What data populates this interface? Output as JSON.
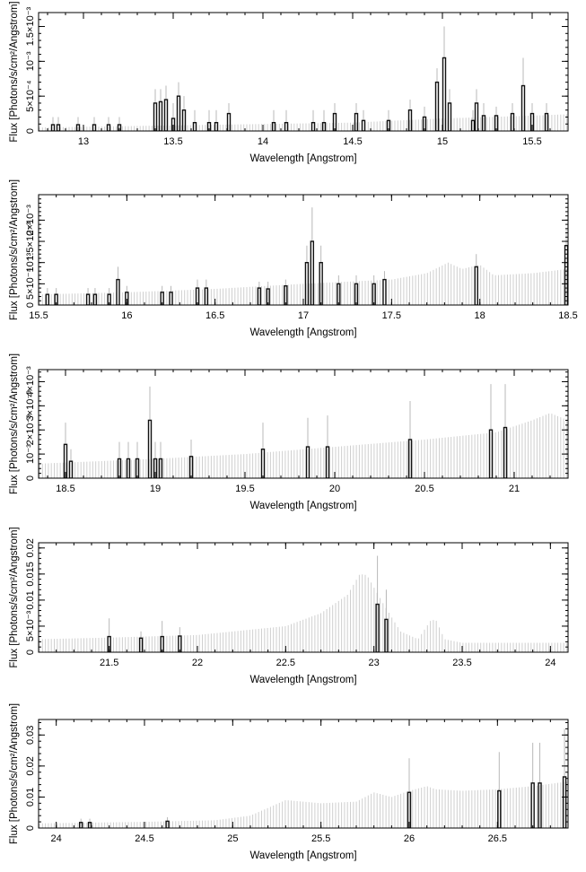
{
  "chart_data": [
    {
      "type": "bar",
      "xlabel": "Wavelength [Angstrom]",
      "ylabel": "Flux [Photons/s/cm²/Angstrom]",
      "xlim": [
        12.75,
        15.7
      ],
      "ylim": [
        0,
        0.0017
      ],
      "xticks": [
        13,
        13.5,
        14,
        14.5,
        15,
        15.5
      ],
      "xtick_labels": [
        "13",
        "13.5",
        "14",
        "14.5",
        "15",
        "15.5"
      ],
      "yticks": [
        0,
        0.0005,
        0.001,
        0.0015
      ],
      "ytick_labels": [
        "0",
        "5×10⁻⁴",
        "10⁻³",
        "1.5×10⁻³"
      ],
      "background": [
        [
          12.75,
          5e-05
        ],
        [
          13.0,
          6e-05
        ],
        [
          13.5,
          8e-05
        ],
        [
          14.0,
          0.0001
        ],
        [
          14.5,
          0.00012
        ],
        [
          15.0,
          0.00018
        ],
        [
          15.5,
          0.00022
        ],
        [
          15.7,
          0.00024
        ]
      ],
      "bins": [
        [
          12.83,
          9e-05,
          0.0002
        ],
        [
          12.86,
          9e-05,
          0.0002
        ],
        [
          12.97,
          9e-05,
          0.0002
        ],
        [
          13.06,
          9e-05,
          0.0002
        ],
        [
          13.14,
          9e-05,
          0.0002
        ],
        [
          13.2,
          9e-05,
          0.0002
        ],
        [
          13.4,
          0.0004,
          0.0006
        ],
        [
          13.43,
          0.00042,
          0.0006
        ],
        [
          13.46,
          0.00045,
          0.00065
        ],
        [
          13.5,
          0.00018,
          0.0004
        ],
        [
          13.53,
          0.0005,
          0.0007
        ],
        [
          13.56,
          0.0003,
          0.0005
        ],
        [
          13.62,
          0.00012,
          0.0003
        ],
        [
          13.7,
          0.00012,
          0.0003
        ],
        [
          13.74,
          0.00012,
          0.0003
        ],
        [
          13.81,
          0.00025,
          0.0004
        ],
        [
          14.06,
          0.00012,
          0.0003
        ],
        [
          14.13,
          0.00012,
          0.0003
        ],
        [
          14.28,
          0.00012,
          0.0003
        ],
        [
          14.34,
          0.00012,
          0.0003
        ],
        [
          14.4,
          0.00025,
          0.0004
        ],
        [
          14.52,
          0.00025,
          0.0004
        ],
        [
          14.56,
          0.00015,
          0.0003
        ],
        [
          14.7,
          0.00015,
          0.0003
        ],
        [
          14.82,
          0.0003,
          0.00045
        ],
        [
          14.9,
          0.0002,
          0.00035
        ],
        [
          14.97,
          0.0007,
          0.0009
        ],
        [
          15.01,
          0.00105,
          0.0015
        ],
        [
          15.04,
          0.0004,
          0.0006
        ],
        [
          15.17,
          0.00015,
          0.0003
        ],
        [
          15.19,
          0.0004,
          0.0006
        ],
        [
          15.23,
          0.00022,
          0.0004
        ],
        [
          15.3,
          0.00022,
          0.00035
        ],
        [
          15.39,
          0.00025,
          0.0004
        ],
        [
          15.45,
          0.00065,
          0.00105
        ],
        [
          15.5,
          0.00025,
          0.0004
        ],
        [
          15.58,
          0.00025,
          0.0004
        ]
      ]
    },
    {
      "type": "bar",
      "xlabel": "Wavelength [Angstrom]",
      "ylabel": "Flux [Photons/s/cm²/Angstrom]",
      "xlim": [
        15.5,
        18.5
      ],
      "ylim": [
        0,
        0.0026
      ],
      "xticks": [
        15.5,
        16,
        16.5,
        17,
        17.5,
        18,
        18.5
      ],
      "xtick_labels": [
        "15.5",
        "16",
        "16.5",
        "17",
        "17.5",
        "18",
        "18.5"
      ],
      "yticks": [
        0,
        0.0005,
        0.001,
        0.0015,
        0.002
      ],
      "ytick_labels": [
        "0",
        "5×10⁻⁴",
        "10⁻³",
        "1.5×10⁻³",
        "2×10⁻³"
      ],
      "background": [
        [
          15.5,
          0.00025
        ],
        [
          16.0,
          0.0003
        ],
        [
          16.5,
          0.00038
        ],
        [
          17.0,
          0.0005
        ],
        [
          17.5,
          0.0006
        ],
        [
          17.7,
          0.00075
        ],
        [
          17.82,
          0.001
        ],
        [
          17.9,
          0.00085
        ],
        [
          18.0,
          0.00095
        ],
        [
          18.08,
          0.0007
        ],
        [
          18.3,
          0.00075
        ],
        [
          18.5,
          0.00085
        ]
      ],
      "bins": [
        [
          15.55,
          0.00025,
          0.0004
        ],
        [
          15.6,
          0.00025,
          0.0004
        ],
        [
          15.78,
          0.00025,
          0.0004
        ],
        [
          15.82,
          0.00025,
          0.0004
        ],
        [
          15.9,
          0.00025,
          0.0004
        ],
        [
          15.95,
          0.0006,
          0.0009
        ],
        [
          16.0,
          0.0003,
          0.00045
        ],
        [
          16.2,
          0.0003,
          0.00045
        ],
        [
          16.25,
          0.0003,
          0.00045
        ],
        [
          16.4,
          0.0004,
          0.0006
        ],
        [
          16.45,
          0.0004,
          0.0006
        ],
        [
          16.75,
          0.0004,
          0.00055
        ],
        [
          16.8,
          0.00038,
          0.00055
        ],
        [
          16.9,
          0.00045,
          0.0006
        ],
        [
          17.02,
          0.001,
          0.0014
        ],
        [
          17.05,
          0.0015,
          0.0023
        ],
        [
          17.1,
          0.001,
          0.0014
        ],
        [
          17.2,
          0.0005,
          0.0007
        ],
        [
          17.3,
          0.0005,
          0.0007
        ],
        [
          17.4,
          0.0005,
          0.0007
        ],
        [
          17.46,
          0.0006,
          0.0008
        ],
        [
          17.98,
          0.0009,
          0.0012
        ],
        [
          18.49,
          0.0014,
          0.0018
        ]
      ]
    },
    {
      "type": "bar",
      "xlabel": "Wavelength [Angstrom]",
      "ylabel": "Flux [Photons/s/cm²/Angstrom]",
      "xlim": [
        18.35,
        21.3
      ],
      "ylim": [
        0,
        0.0045
      ],
      "xticks": [
        18.5,
        19,
        19.5,
        20,
        20.5,
        21
      ],
      "xtick_labels": [
        "18.5",
        "19",
        "19.5",
        "20",
        "20.5",
        "21"
      ],
      "yticks": [
        0,
        0.001,
        0.002,
        0.003,
        0.004
      ],
      "ytick_labels": [
        "0",
        "10⁻³",
        "2×10⁻³",
        "3×10⁻³",
        "4×10⁻³"
      ],
      "background": [
        [
          18.35,
          0.0006
        ],
        [
          19.0,
          0.0008
        ],
        [
          19.5,
          0.001
        ],
        [
          20.0,
          0.0013
        ],
        [
          20.5,
          0.0016
        ],
        [
          20.9,
          0.0019
        ],
        [
          21.1,
          0.0024
        ],
        [
          21.2,
          0.0027
        ],
        [
          21.3,
          0.0024
        ]
      ],
      "bins": [
        [
          18.5,
          0.0014,
          0.0023
        ],
        [
          18.53,
          0.0007,
          0.0012
        ],
        [
          18.8,
          0.0008,
          0.0015
        ],
        [
          18.85,
          0.0008,
          0.0015
        ],
        [
          18.9,
          0.0008,
          0.0015
        ],
        [
          18.97,
          0.0024,
          0.0038
        ],
        [
          19.0,
          0.0008,
          0.0015
        ],
        [
          19.03,
          0.0008,
          0.0015
        ],
        [
          19.2,
          0.0009,
          0.0016
        ],
        [
          19.6,
          0.0012,
          0.0023
        ],
        [
          19.85,
          0.0013,
          0.0025
        ],
        [
          19.96,
          0.0013,
          0.0026
        ],
        [
          20.42,
          0.0016,
          0.0032
        ],
        [
          20.87,
          0.002,
          0.0039
        ],
        [
          20.95,
          0.0021,
          0.0039
        ]
      ]
    },
    {
      "type": "bar",
      "xlabel": "Wavelength [Angstrom]",
      "ylabel": "Flux [Photons/s/cm²/Angstrom]",
      "xlim": [
        21.1,
        24.1
      ],
      "ylim": [
        0,
        0.021
      ],
      "xticks": [
        21.5,
        22,
        22.5,
        23,
        23.5,
        24
      ],
      "xtick_labels": [
        "21.5",
        "22",
        "22.5",
        "23",
        "23.5",
        "24"
      ],
      "yticks": [
        0,
        0.005,
        0.01,
        0.015,
        0.02
      ],
      "ytick_labels": [
        "0",
        "5×10⁻³",
        "0.01",
        "0.015",
        "0.02"
      ],
      "background": [
        [
          21.1,
          0.0025
        ],
        [
          21.5,
          0.0028
        ],
        [
          22.0,
          0.0033
        ],
        [
          22.5,
          0.005
        ],
        [
          22.7,
          0.0075
        ],
        [
          22.85,
          0.011
        ],
        [
          22.92,
          0.015
        ],
        [
          22.96,
          0.0148
        ],
        [
          23.05,
          0.0095
        ],
        [
          23.15,
          0.004
        ],
        [
          23.25,
          0.0025
        ],
        [
          23.32,
          0.006
        ],
        [
          23.35,
          0.0063
        ],
        [
          23.4,
          0.0025
        ],
        [
          23.5,
          0.0018
        ],
        [
          24.1,
          0.0018
        ]
      ],
      "bins": [
        [
          21.5,
          0.003,
          0.0065
        ],
        [
          21.68,
          0.0027,
          0.004
        ],
        [
          21.8,
          0.003,
          0.006
        ],
        [
          21.9,
          0.0031,
          0.0048
        ],
        [
          23.02,
          0.0092,
          0.0185
        ],
        [
          23.07,
          0.0063,
          0.012
        ]
      ]
    },
    {
      "type": "bar",
      "xlabel": "Wavelength [Angstrom]",
      "ylabel": "Flux [Photons/s/cm²/Angstrom]",
      "xlim": [
        23.9,
        26.9
      ],
      "ylim": [
        0,
        0.035
      ],
      "xticks": [
        24,
        24.5,
        25,
        25.5,
        26,
        26.5
      ],
      "xtick_labels": [
        "24",
        "24.5",
        "25",
        "25.5",
        "26",
        "26.5"
      ],
      "yticks": [
        0,
        0.01,
        0.02,
        0.03
      ],
      "ytick_labels": [
        "0",
        "0.01",
        "0.02",
        "0.03"
      ],
      "background": [
        [
          23.9,
          0.0015
        ],
        [
          24.5,
          0.002
        ],
        [
          24.9,
          0.0025
        ],
        [
          25.1,
          0.004
        ],
        [
          25.3,
          0.009
        ],
        [
          25.5,
          0.008
        ],
        [
          25.7,
          0.0085
        ],
        [
          25.8,
          0.0115
        ],
        [
          25.9,
          0.01
        ],
        [
          26.0,
          0.012
        ],
        [
          26.1,
          0.0135
        ],
        [
          26.15,
          0.0125
        ],
        [
          26.3,
          0.012
        ],
        [
          26.5,
          0.0125
        ],
        [
          26.7,
          0.0135
        ],
        [
          26.9,
          0.015
        ]
      ],
      "bins": [
        [
          24.14,
          0.0018,
          0.003
        ],
        [
          24.19,
          0.0018,
          0.003
        ],
        [
          24.63,
          0.0022,
          0.0035
        ],
        [
          26.0,
          0.0115,
          0.0225
        ],
        [
          26.51,
          0.012,
          0.0245
        ],
        [
          26.7,
          0.0145,
          0.0275
        ],
        [
          26.74,
          0.0145,
          0.0275
        ],
        [
          26.88,
          0.0165,
          0.032
        ]
      ]
    }
  ]
}
